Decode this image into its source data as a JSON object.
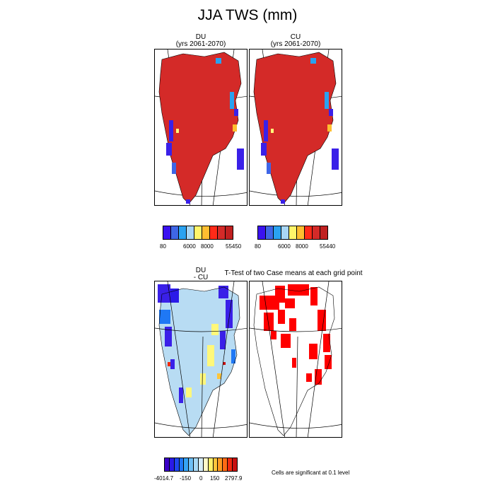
{
  "title": "JJA TWS (mm)",
  "panels": {
    "du": {
      "title_line1": "DU",
      "title_line2": "(yrs 2061-2070)"
    },
    "cu": {
      "title_line1": "CU",
      "title_line2": "(yrs 2061-2070)"
    },
    "diff": {
      "title_line1": "DU",
      "title_line2": "- CU"
    },
    "ttest": {
      "title": "T-Test of two Case means at each grid point"
    }
  },
  "colorbars": {
    "du": {
      "colors": [
        "#3a12f0",
        "#3f66e6",
        "#2aa2f0",
        "#a8d6f5",
        "#fff56a",
        "#ffbe30",
        "#ff2a18",
        "#d42a28",
        "#c02020"
      ],
      "labels": [
        "80",
        "6000",
        "8000",
        "55450"
      ]
    },
    "cu": {
      "colors": [
        "#3a12f0",
        "#3f66e6",
        "#2aa2f0",
        "#a8d6f5",
        "#fff56a",
        "#ffbe30",
        "#ff2a18",
        "#d42a28",
        "#c02020"
      ],
      "labels": [
        "80",
        "6000",
        "8000",
        "55440"
      ]
    },
    "diff": {
      "colors": [
        "#3a00c8",
        "#2a1ae8",
        "#1f46f0",
        "#1f78f5",
        "#35a4f5",
        "#6fc0f5",
        "#a8daf5",
        "#d8eef8",
        "#fffac8",
        "#fff06a",
        "#ffc43a",
        "#ff9a22",
        "#ff6a14",
        "#f02a10",
        "#c81010"
      ],
      "labels": [
        "-4014.7",
        "-150",
        "0",
        "150",
        "2797.9"
      ]
    }
  },
  "significance_note": "Cells are significant at 0.1 level",
  "map_colors": {
    "land_red": "#d42a28",
    "diff_fill": "#b8dcf3",
    "sig_red": "#ff0000",
    "blue": "#3a20e8",
    "yellow": "#fff87a"
  }
}
